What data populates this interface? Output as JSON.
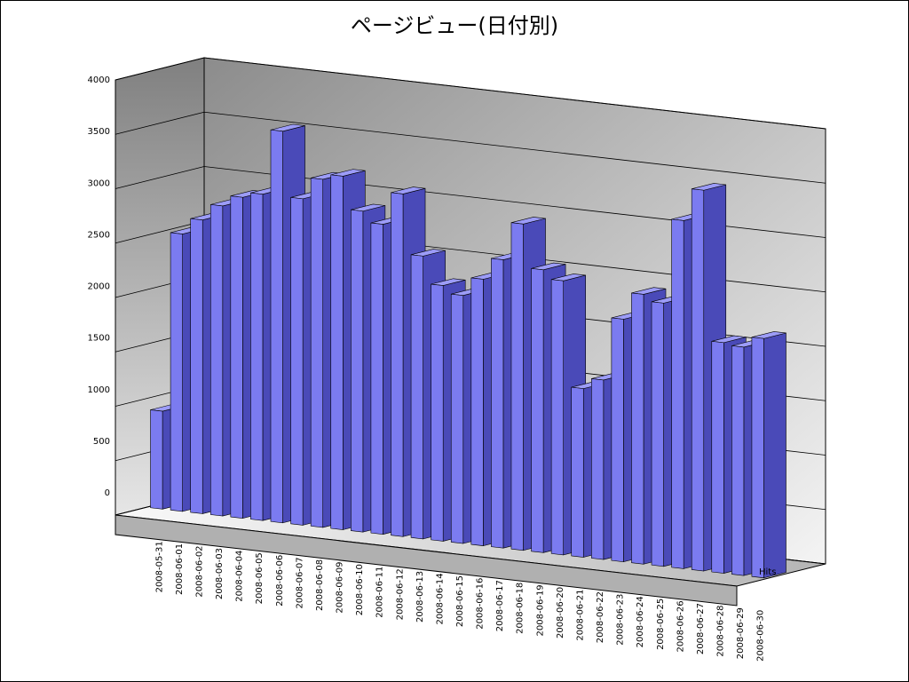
{
  "chart_data": {
    "type": "bar3d",
    "title": "ページビュー(日付別)",
    "categories": [
      "2008-05-31",
      "2008-06-01",
      "2008-06-02",
      "2008-06-03",
      "2008-06-04",
      "2008-06-05",
      "2008-06-06",
      "2008-06-07",
      "2008-06-08",
      "2008-06-09",
      "2008-06-10",
      "2008-06-11",
      "2008-06-12",
      "2008-06-13",
      "2008-06-14",
      "2008-06-15",
      "2008-06-16",
      "2008-06-17",
      "2008-06-18",
      "2008-06-19",
      "2008-06-20",
      "2008-06-21",
      "2008-06-22",
      "2008-06-23",
      "2008-06-24",
      "2008-06-25",
      "2008-06-26",
      "2008-06-27",
      "2008-06-28",
      "2008-06-29",
      "2008-06-30"
    ],
    "series": [
      {
        "name": "Hits",
        "color": "#7b7bf0",
        "values": [
          900,
          2550,
          2700,
          2850,
          2950,
          3000,
          3600,
          3000,
          3200,
          3250,
          2950,
          2850,
          3150,
          2600,
          2350,
          2280,
          2450,
          2650,
          3000,
          2600,
          2520,
          1550,
          1650,
          2230,
          2480,
          2420,
          3200,
          3500,
          2120,
          2100,
          2200
        ]
      }
    ],
    "ylim": [
      0,
      4000
    ],
    "yticks": [
      0,
      500,
      1000,
      1500,
      2000,
      2500,
      3000,
      3500,
      4000
    ],
    "grid": true
  }
}
